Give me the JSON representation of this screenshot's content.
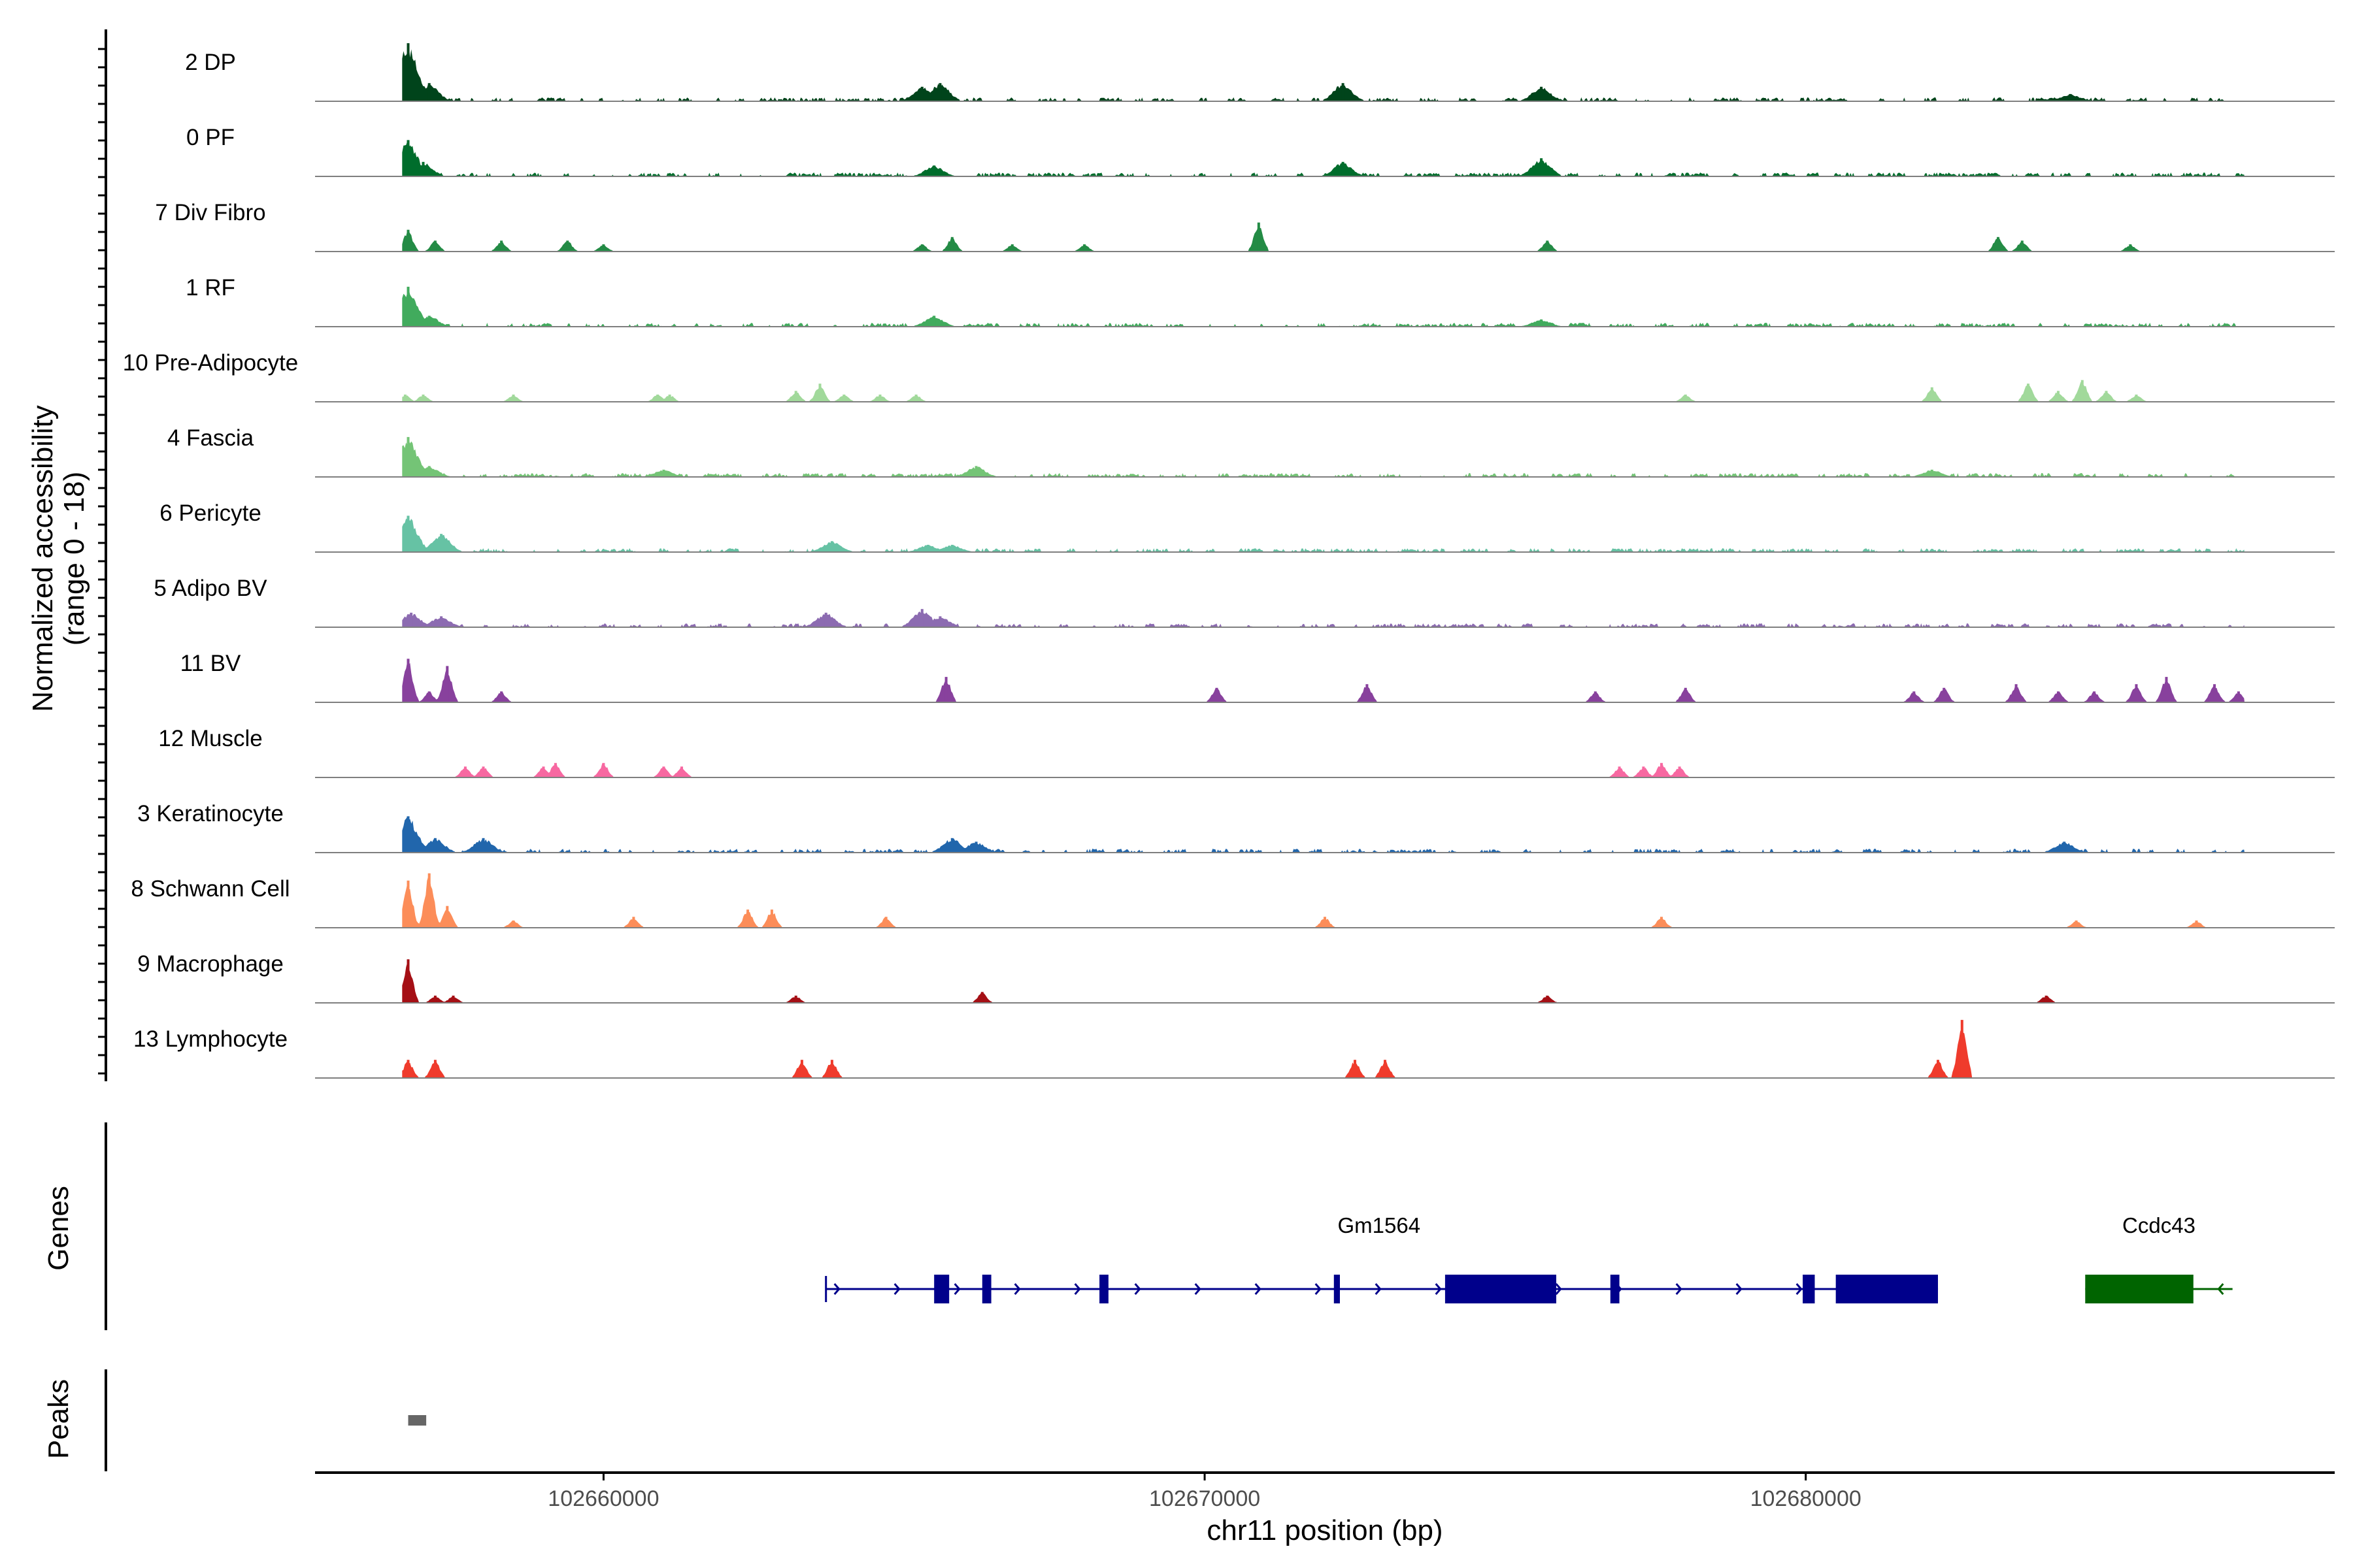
{
  "chart_data": {
    "type": "genome-track",
    "y_axis_title_line1": "Normalized accessibility",
    "y_axis_title_line2": "(range 0 - 18)",
    "y_range": [
      0,
      18
    ],
    "x_axis_title": "chr11 position (bp)",
    "x_range": [
      102655200,
      102688800
    ],
    "x_ticks": [
      102660000,
      102670000,
      102680000
    ],
    "x_tick_labels": [
      "102660000",
      "102670000",
      "102680000"
    ],
    "tracks": [
      {
        "name": "2 DP",
        "color": "#00441b",
        "dense": true,
        "peaks": [
          [
            102656750,
            16
          ],
          [
            102657100,
            5
          ],
          [
            102665300,
            4
          ],
          [
            102665600,
            5
          ],
          [
            102672300,
            5
          ],
          [
            102675600,
            4
          ],
          [
            102684400,
            2
          ]
        ]
      },
      {
        "name": "0 PF",
        "color": "#006d2c",
        "dense": true,
        "peaks": [
          [
            102656750,
            10
          ],
          [
            102657000,
            4
          ],
          [
            102665500,
            3
          ],
          [
            102672300,
            4
          ],
          [
            102675600,
            5
          ]
        ]
      },
      {
        "name": "7 Div Fibro",
        "color": "#238b45",
        "dense": false,
        "peaks": [
          [
            102656750,
            6
          ],
          [
            102657200,
            3
          ],
          [
            102658300,
            3
          ],
          [
            102659400,
            3
          ],
          [
            102660000,
            2
          ],
          [
            102665300,
            2
          ],
          [
            102665800,
            4
          ],
          [
            102666800,
            2
          ],
          [
            102668000,
            2
          ],
          [
            102670900,
            8
          ],
          [
            102675700,
            3
          ],
          [
            102683200,
            4
          ],
          [
            102683600,
            3
          ],
          [
            102685400,
            2
          ]
        ]
      },
      {
        "name": "1 RF",
        "color": "#41ab5d",
        "dense": true,
        "peaks": [
          [
            102656750,
            11
          ],
          [
            102657100,
            3
          ],
          [
            102665500,
            3
          ],
          [
            102675600,
            2
          ]
        ]
      },
      {
        "name": "10 Pre-Adipocyte",
        "color": "#a1d99b",
        "dense": false,
        "peaks": [
          [
            102656700,
            2
          ],
          [
            102657000,
            2
          ],
          [
            102658500,
            2
          ],
          [
            102660900,
            2
          ],
          [
            102661100,
            2
          ],
          [
            102663200,
            3
          ],
          [
            102663600,
            5
          ],
          [
            102664000,
            2
          ],
          [
            102664600,
            2
          ],
          [
            102665200,
            2
          ],
          [
            102678000,
            2
          ],
          [
            102682100,
            4
          ],
          [
            102683700,
            5
          ],
          [
            102684200,
            3
          ],
          [
            102684600,
            6
          ],
          [
            102685000,
            3
          ],
          [
            102685500,
            2
          ]
        ]
      },
      {
        "name": "4 Fascia",
        "color": "#74c476",
        "dense": true,
        "peaks": [
          [
            102656750,
            11
          ],
          [
            102657100,
            3
          ],
          [
            102661000,
            2
          ],
          [
            102666200,
            3
          ],
          [
            102682100,
            2
          ]
        ]
      },
      {
        "name": "6 Pericyte",
        "color": "#66c2a4",
        "dense": true,
        "peaks": [
          [
            102656750,
            10
          ],
          [
            102657300,
            5
          ],
          [
            102663800,
            3
          ],
          [
            102665400,
            2
          ],
          [
            102665800,
            2
          ]
        ]
      },
      {
        "name": "5 Adipo BV",
        "color": "#8c6bb1",
        "dense": true,
        "peaks": [
          [
            102656800,
            4
          ],
          [
            102657300,
            3
          ],
          [
            102663700,
            4
          ],
          [
            102665300,
            5
          ],
          [
            102665600,
            3
          ]
        ]
      },
      {
        "name": "11 BV",
        "color": "#88419d",
        "dense": false,
        "peaks": [
          [
            102656750,
            12
          ],
          [
            102657100,
            3
          ],
          [
            102657400,
            10
          ],
          [
            102658300,
            3
          ],
          [
            102665700,
            7
          ],
          [
            102670200,
            4
          ],
          [
            102672700,
            5
          ],
          [
            102676500,
            3
          ],
          [
            102678000,
            4
          ],
          [
            102681800,
            3
          ],
          [
            102682300,
            4
          ],
          [
            102683500,
            5
          ],
          [
            102684200,
            3
          ],
          [
            102684800,
            3
          ],
          [
            102685500,
            5
          ],
          [
            102686000,
            7
          ],
          [
            102686800,
            5
          ],
          [
            102687200,
            3
          ]
        ]
      },
      {
        "name": "12 Muscle",
        "color": "#f768a1",
        "dense": false,
        "peaks": [
          [
            102657700,
            3
          ],
          [
            102658000,
            3
          ],
          [
            102659000,
            3
          ],
          [
            102659200,
            4
          ],
          [
            102660000,
            4
          ],
          [
            102661000,
            3
          ],
          [
            102661300,
            3
          ],
          [
            102676900,
            3
          ],
          [
            102677300,
            3
          ],
          [
            102677600,
            4
          ],
          [
            102677900,
            3
          ]
        ]
      },
      {
        "name": "3 Keratinocyte",
        "color": "#2166ac",
        "dense": true,
        "peaks": [
          [
            102656750,
            10
          ],
          [
            102657200,
            4
          ],
          [
            102658000,
            4
          ],
          [
            102665800,
            4
          ],
          [
            102666200,
            3
          ],
          [
            102684300,
            3
          ]
        ]
      },
      {
        "name": "8 Schwann Cell",
        "color": "#fc8d59",
        "dense": false,
        "peaks": [
          [
            102656750,
            13
          ],
          [
            102657100,
            15
          ],
          [
            102657400,
            6
          ],
          [
            102658500,
            2
          ],
          [
            102660500,
            3
          ],
          [
            102662400,
            5
          ],
          [
            102662800,
            5
          ],
          [
            102664700,
            3
          ],
          [
            102672000,
            3
          ],
          [
            102677600,
            3
          ],
          [
            102684500,
            2
          ],
          [
            102686500,
            2
          ]
        ]
      },
      {
        "name": "9 Macrophage",
        "color": "#a50f15",
        "dense": false,
        "peaks": [
          [
            102656750,
            12
          ],
          [
            102657200,
            2
          ],
          [
            102657500,
            2
          ],
          [
            102663200,
            2
          ],
          [
            102666300,
            3
          ],
          [
            102675700,
            2
          ],
          [
            102684000,
            2
          ]
        ]
      },
      {
        "name": "13 Lymphocyte",
        "color": "#ef3b2c",
        "dense": false,
        "peaks": [
          [
            102656750,
            5
          ],
          [
            102657200,
            5
          ],
          [
            102663300,
            5
          ],
          [
            102663800,
            5
          ],
          [
            102672500,
            5
          ],
          [
            102673000,
            5
          ],
          [
            102682200,
            5
          ],
          [
            102682600,
            16
          ]
        ]
      }
    ],
    "genes_axis_label": "Genes",
    "genes": [
      {
        "name": "Gm1564",
        "strand": "+",
        "start": 102663700,
        "end": 102682200,
        "color": "#00008b",
        "exons": [
          [
            102665500,
            102665750
          ],
          [
            102666300,
            102666450
          ],
          [
            102668250,
            102668400
          ],
          [
            102672150,
            102672250
          ],
          [
            102674000,
            102675850
          ],
          [
            102676750,
            102676900
          ],
          [
            102679950,
            102680150
          ],
          [
            102680500,
            102682200
          ]
        ]
      },
      {
        "name": "Ccdc43",
        "strand": "-",
        "start": 102684650,
        "end": 102687100,
        "color": "#006400",
        "exons": [
          [
            102684650,
            102686450
          ]
        ]
      }
    ],
    "peaks_axis_label": "Peaks",
    "peak_regions": [
      [
        102656750,
        102657050
      ]
    ]
  }
}
